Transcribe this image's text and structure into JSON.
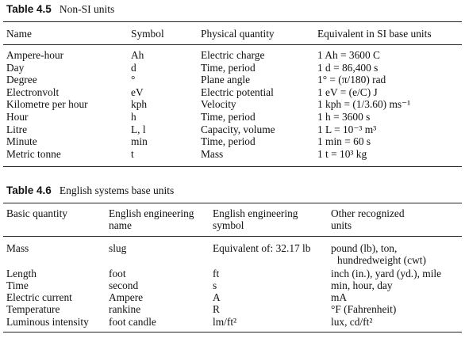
{
  "table1": {
    "caption_number": "Table 4.5",
    "caption_title": "Non-SI units",
    "headers": [
      "Name",
      "Symbol",
      "Physical quantity",
      "Equivalent in SI base units"
    ],
    "rows": [
      [
        "Ampere-hour",
        "Ah",
        "Electric charge",
        "1 Ah = 3600 C"
      ],
      [
        "Day",
        "d",
        "Time, period",
        "1 d = 86,400 s"
      ],
      [
        "Degree",
        "°",
        "Plane angle",
        "1° = (π/180) rad"
      ],
      [
        "Electronvolt",
        "eV",
        "Electric potential",
        "1 eV = (e/C) J"
      ],
      [
        "Kilometre per hour",
        "kph",
        "Velocity",
        "1 kph = (1/3.60) ms⁻¹"
      ],
      [
        "Hour",
        "h",
        "Time, period",
        "1 h = 3600 s"
      ],
      [
        "Litre",
        "L, l",
        "Capacity, volume",
        "1 L = 10⁻³ m³"
      ],
      [
        "Minute",
        "min",
        "Time, period",
        "1 min = 60 s"
      ],
      [
        "Metric tonne",
        "t",
        "Mass",
        "1 t = 10³ kg"
      ]
    ]
  },
  "table2": {
    "caption_number": "Table 4.6",
    "caption_title": "English systems base units",
    "headers": [
      [
        "Basic quantity"
      ],
      [
        "English engineering",
        "name"
      ],
      [
        "English engineering",
        "symbol"
      ],
      [
        "Other recognized",
        "units"
      ]
    ],
    "rows": [
      [
        "Mass",
        "slug",
        "Equivalent of: 32.17 lb",
        "pound (lb), ton,",
        "hundredweight (cwt)"
      ],
      [
        "Length",
        "foot",
        "ft",
        "inch (in.), yard (yd.), mile"
      ],
      [
        "Time",
        "second",
        "s",
        "min, hour, day"
      ],
      [
        "Electric current",
        "Ampere",
        "A",
        "mA"
      ],
      [
        "Temperature",
        "rankine",
        "R",
        "°F (Fahrenheit)"
      ],
      [
        "Luminous intensity",
        "foot candle",
        "lm/ft²",
        "lux, cd/ft²"
      ]
    ]
  }
}
